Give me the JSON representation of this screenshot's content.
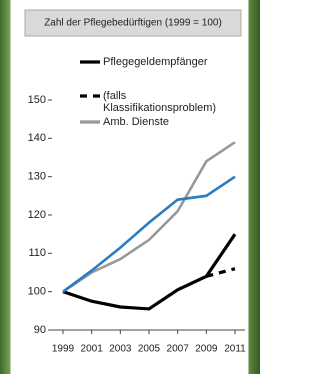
{
  "chart_data": {
    "type": "line",
    "title": "Zahl der Pflegebedürftigen (1999 = 100)",
    "x": [
      1999,
      2001,
      2003,
      2005,
      2007,
      2009,
      2011
    ],
    "xlim": [
      1999,
      2011
    ],
    "xticks": [
      1999,
      2001,
      2003,
      2005,
      2007,
      2009,
      2011
    ],
    "ylim": [
      90,
      150
    ],
    "yticks": [
      90,
      100,
      110,
      120,
      130,
      140,
      150
    ],
    "series": [
      {
        "name": "Pflegegeldempfänger",
        "color": "#000000",
        "dash": "solid",
        "values": [
          100,
          97.5,
          96,
          95.5,
          100.5,
          104,
          115
        ]
      },
      {
        "name": "(falls Klassifikationsproblem)",
        "color": "#000000",
        "dash": "dashed",
        "values": [
          null,
          null,
          null,
          null,
          null,
          104,
          106
        ]
      },
      {
        "name": "Amb. Dienste",
        "color": "#999999",
        "dash": "solid",
        "values": [
          100,
          105,
          108.5,
          113.5,
          121,
          134,
          139
        ]
      },
      {
        "color": "#2b7bc0",
        "dash": "solid",
        "values": [
          100,
          105.5,
          111.5,
          118,
          124,
          125,
          130
        ]
      }
    ]
  }
}
